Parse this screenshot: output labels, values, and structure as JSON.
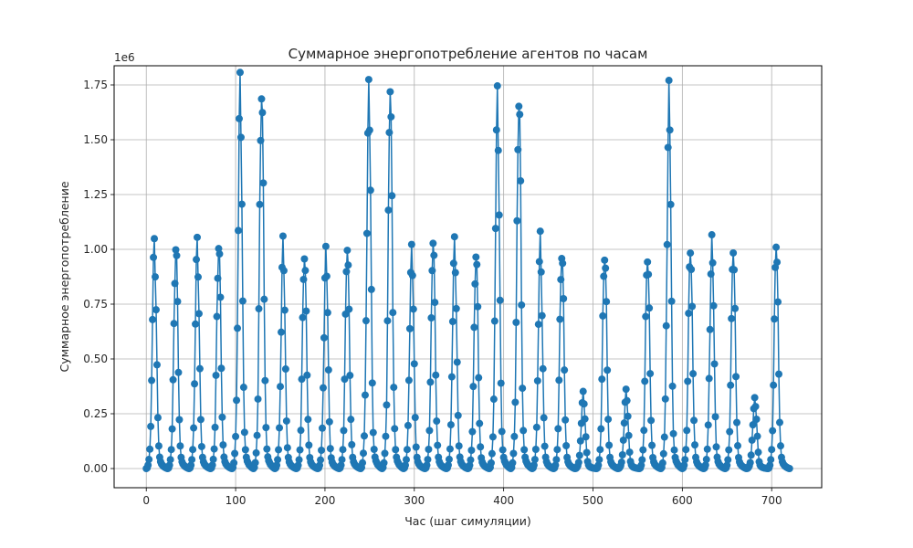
{
  "chart_data": {
    "type": "line",
    "title": "Суммарное энергопотребление агентов по часам",
    "xlabel": "Час (шаг симуляции)",
    "ylabel": "Суммарное энергопотребление",
    "y_offset_text": "1e6",
    "xlim": [
      -36,
      756
    ],
    "ylim": [
      -0.0875,
      1.8375
    ],
    "x_ticks": [
      0,
      100,
      200,
      300,
      400,
      500,
      600,
      700
    ],
    "y_ticks": [
      0.0,
      0.25,
      0.5,
      0.75,
      1.0,
      1.25,
      1.5,
      1.75
    ],
    "y_tick_labels": [
      "0.00",
      "0.25",
      "0.50",
      "0.75",
      "1.00",
      "1.25",
      "1.50",
      "1.75"
    ],
    "grid": true,
    "marker": "circle",
    "line_color": "#1f77b4",
    "day_profile_hours_0_to_23": [
      0.0,
      0.003,
      0.015,
      0.04,
      0.085,
      0.18,
      0.39,
      0.65,
      0.88,
      1.0,
      0.9,
      0.72,
      0.44,
      0.22,
      0.1,
      0.05,
      0.03,
      0.02,
      0.015,
      0.01,
      0.008,
      0.005,
      0.003,
      0.001
    ],
    "day_peaks_1e6": [
      1.04,
      1.02,
      1.02,
      1.05,
      1.72,
      1.78,
      1.01,
      1.0,
      0.98,
      1.02,
      1.75,
      1.73,
      1.02,
      1.03,
      1.05,
      0.98,
      1.7,
      1.72,
      1.03,
      1.02,
      0.33,
      1.02,
      0.34,
      1.0,
      1.69,
      1.02,
      1.04,
      1.0,
      0.32,
      1.02
    ],
    "n_hours": 721
  }
}
